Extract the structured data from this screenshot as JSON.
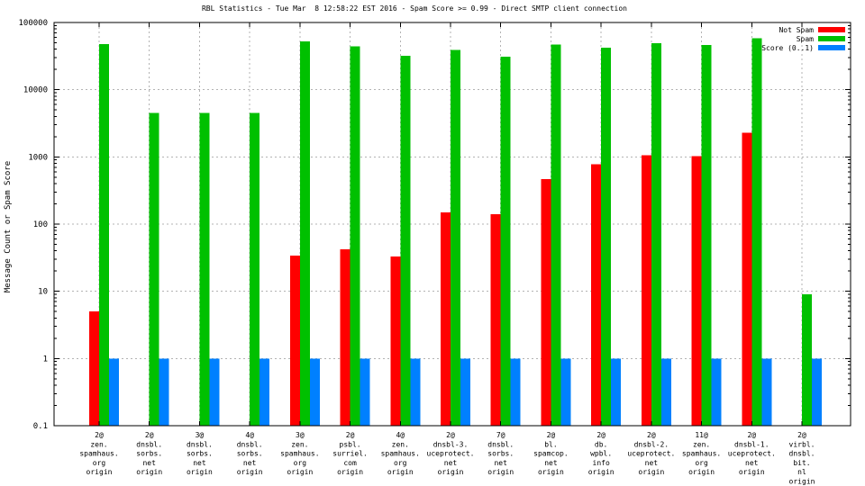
{
  "chart_data": {
    "type": "bar",
    "title": "RBL Statistics - Tue Mar  8 12:58:22 EST 2016 - Spam Score >= 0.99 - Direct SMTP client connection",
    "ylabel": "Message Count or Spam Score",
    "yscale": "log",
    "ylim": [
      0.1,
      100000
    ],
    "ytick_labels": [
      "100000",
      "10000",
      "1000",
      "100",
      "10",
      "1",
      "0.1"
    ],
    "grid": true,
    "legend_position": "top-right-inside",
    "legend": [
      "Not Spam",
      "Spam",
      "Score (0..1)"
    ],
    "colors": {
      "not_spam": "#ff0000",
      "spam": "#00c000",
      "score": "#0080ff",
      "grid": "#b3b3b3",
      "border": "#000000"
    },
    "categories": [
      [
        "2@",
        "zen.",
        "spamhaus.",
        "org",
        "origin"
      ],
      [
        "2@",
        "dnsbl.",
        "sorbs.",
        "net",
        "origin"
      ],
      [
        "3@",
        "dnsbl.",
        "sorbs.",
        "net",
        "origin"
      ],
      [
        "4@",
        "dnsbl.",
        "sorbs.",
        "net",
        "origin"
      ],
      [
        "3@",
        "zen.",
        "spamhaus.",
        "org",
        "origin"
      ],
      [
        "2@",
        "psbl.",
        "surriel.",
        "com",
        "origin"
      ],
      [
        "4@",
        "zen.",
        "spamhaus.",
        "org",
        "origin"
      ],
      [
        "2@",
        "dnsbl-3.",
        "uceprotect.",
        "net",
        "origin"
      ],
      [
        "7@",
        "dnsbl.",
        "sorbs.",
        "net",
        "origin"
      ],
      [
        "2@",
        "bl.",
        "spamcop.",
        "net",
        "origin"
      ],
      [
        "2@",
        "db.",
        "wpbl.",
        "info",
        "origin"
      ],
      [
        "2@",
        "dnsbl-2.",
        "uceprotect.",
        "net",
        "origin"
      ],
      [
        "11@",
        "zen.",
        "spamhaus.",
        "org",
        "origin"
      ],
      [
        "2@",
        "dnsbl-1.",
        "uceprotect.",
        "net",
        "origin"
      ],
      [
        "2@",
        "virbl.",
        "dnsbl.",
        "bit.",
        "nl",
        "origin"
      ]
    ],
    "series": [
      {
        "name": "Not Spam",
        "color": "#ff0000",
        "values": [
          5,
          0,
          0,
          0,
          34,
          42,
          33,
          150,
          140,
          470,
          780,
          1060,
          1030,
          2280,
          0
        ]
      },
      {
        "name": "Spam",
        "color": "#00c000",
        "values": [
          48000,
          4500,
          4500,
          4500,
          52000,
          44000,
          32000,
          39000,
          31000,
          47000,
          42000,
          49000,
          46000,
          58000,
          9
        ]
      },
      {
        "name": "Score (0..1)",
        "color": "#0080ff",
        "values": [
          1,
          1,
          1,
          1,
          1,
          1,
          1,
          1,
          1,
          1,
          1,
          1,
          1,
          1,
          1
        ]
      }
    ]
  }
}
